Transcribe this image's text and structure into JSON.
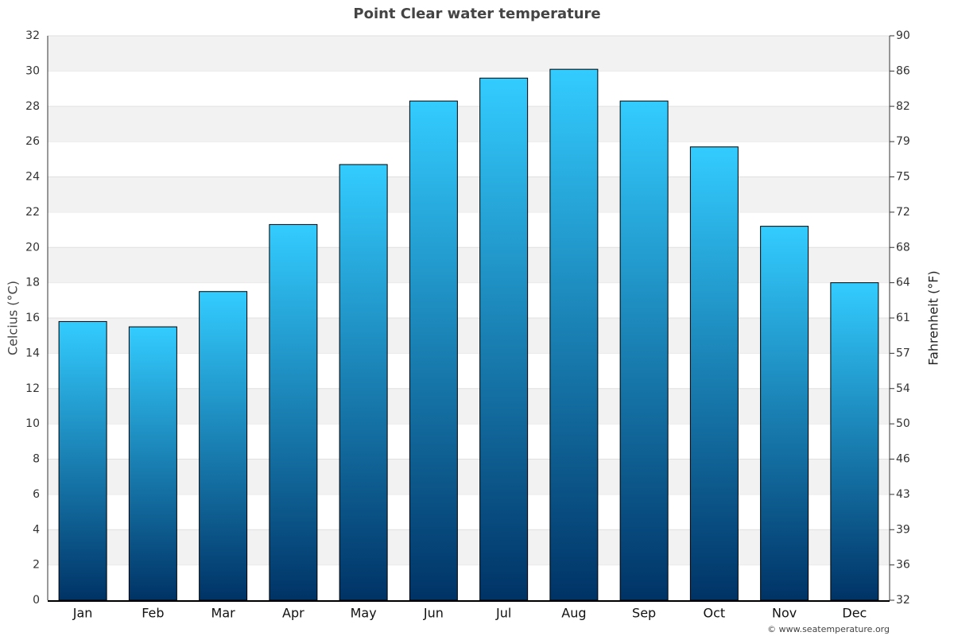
{
  "chart_data": {
    "type": "bar",
    "title": "Point Clear water temperature",
    "categories": [
      "Jan",
      "Feb",
      "Mar",
      "Apr",
      "May",
      "Jun",
      "Jul",
      "Aug",
      "Sep",
      "Oct",
      "Nov",
      "Dec"
    ],
    "values": [
      15.8,
      15.5,
      17.5,
      21.3,
      24.7,
      28.3,
      29.6,
      30.1,
      28.3,
      25.7,
      21.2,
      18.0
    ],
    "color": [
      "#33ccff",
      "#003366"
    ],
    "ylabel": "Celcius (°C)",
    "y2label": "Fahrenheit (°F)",
    "ylim": [
      0,
      32
    ],
    "yticks": [
      0,
      2,
      4,
      6,
      8,
      10,
      12,
      14,
      16,
      18,
      20,
      22,
      24,
      26,
      28,
      30,
      32
    ],
    "y2lim": [
      32,
      89.6
    ],
    "y2ticks": [
      32,
      {
        "value": 35.6,
        "label": "36"
      },
      {
        "value": 39.2,
        "label": "39"
      },
      {
        "value": 42.8,
        "label": "43"
      },
      {
        "value": 46.4,
        "label": "46"
      },
      50,
      {
        "value": 53.6,
        "label": "54"
      },
      {
        "value": 57.2,
        "label": "57"
      },
      {
        "value": 60.8,
        "label": "61"
      },
      {
        "value": 64.4,
        "label": "64"
      },
      68,
      {
        "value": 71.6,
        "label": "72"
      },
      {
        "value": 75.2,
        "label": "75"
      },
      {
        "value": 78.8,
        "label": "79"
      },
      {
        "value": 82.4,
        "label": "82"
      },
      86,
      {
        "value": 89.6,
        "label": "90"
      }
    ],
    "grid": true,
    "credit": "© www.seatemperature.org"
  }
}
